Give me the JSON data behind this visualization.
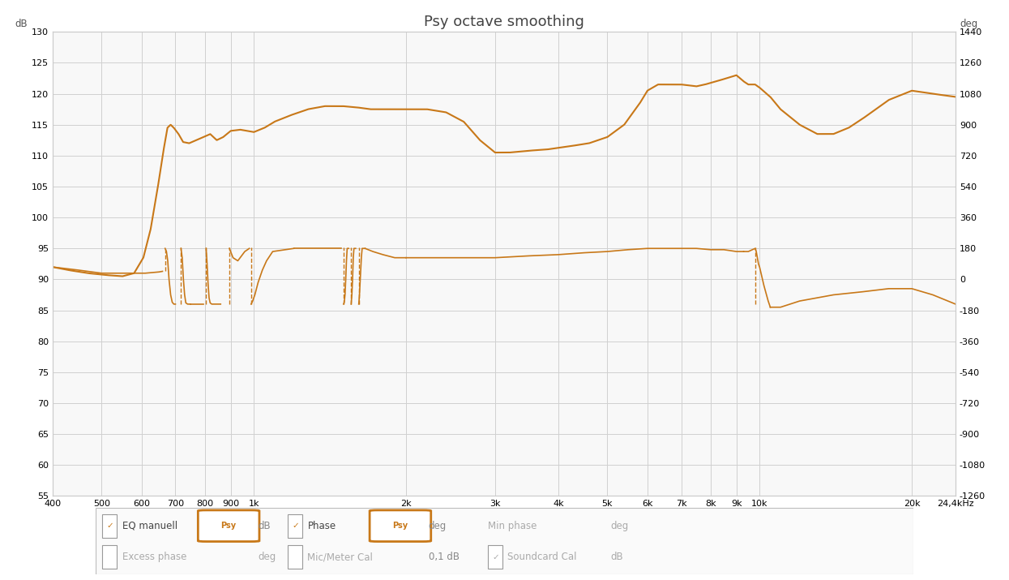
{
  "title": "Psy octave smoothing",
  "bg_color": "#ffffff",
  "plot_bg_color": "#f8f8f8",
  "grid_color": "#d0d0d0",
  "curve_color": "#c87818",
  "xlim_log": [
    400,
    24400
  ],
  "ylim_left": [
    55,
    130
  ],
  "ylim_right": [
    -1260,
    1440
  ],
  "ytick_left": [
    55,
    60,
    65,
    70,
    75,
    80,
    85,
    90,
    95,
    100,
    105,
    110,
    115,
    120,
    125,
    130
  ],
  "ytick_right": [
    -1260,
    -1080,
    -900,
    -720,
    -540,
    -360,
    -180,
    0,
    180,
    360,
    540,
    720,
    900,
    1080,
    1260,
    1440
  ],
  "xtick_positions": [
    400,
    500,
    600,
    700,
    800,
    900,
    1000,
    2000,
    3000,
    4000,
    5000,
    6000,
    7000,
    8000,
    9000,
    10000,
    20000,
    24400
  ],
  "xtick_labels": [
    "400",
    "500",
    "600",
    "700",
    "800",
    "900",
    "1k",
    "2k",
    "3k",
    "4k",
    "5k",
    "6k",
    "7k",
    "8k",
    "9k",
    "10k",
    "20k",
    "24,4kHz"
  ]
}
